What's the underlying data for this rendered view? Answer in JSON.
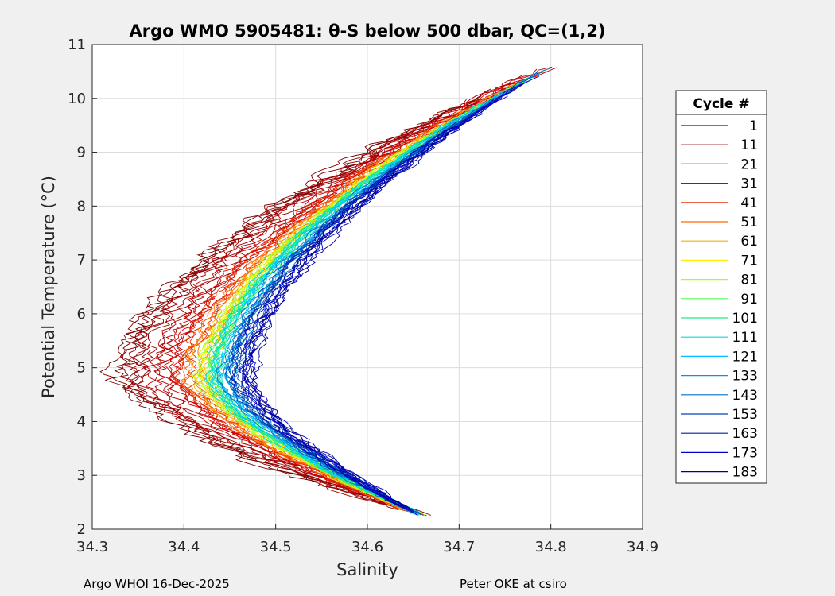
{
  "chart_data": {
    "type": "line",
    "title": "Argo WMO 5905481: θ-S below 500 dbar,  QC=(1,2)",
    "xlabel": "Salinity",
    "ylabel": "Potential Temperature (°C)",
    "xlim": [
      34.3,
      34.9
    ],
    "ylim": [
      2,
      11
    ],
    "xticks": [
      "34.3",
      "34.4",
      "34.5",
      "34.6",
      "34.7",
      "34.8",
      "34.9"
    ],
    "yticks": [
      "2",
      "3",
      "4",
      "5",
      "6",
      "7",
      "8",
      "9",
      "10",
      "11"
    ],
    "grid": true,
    "legend": {
      "title": "Cycle #",
      "position": "right",
      "entries": [
        {
          "label": "1",
          "color": "#7f0000"
        },
        {
          "label": "11",
          "color": "#990000"
        },
        {
          "label": "21",
          "color": "#b30000"
        },
        {
          "label": "31",
          "color": "#cc0000"
        },
        {
          "label": "41",
          "color": "#e62e00"
        },
        {
          "label": "51",
          "color": "#ff6600"
        },
        {
          "label": "61",
          "color": "#ffaa00"
        },
        {
          "label": "71",
          "color": "#ffee00"
        },
        {
          "label": "81",
          "color": "#aaff22"
        },
        {
          "label": "91",
          "color": "#55ff55"
        },
        {
          "label": "101",
          "color": "#22ee88"
        },
        {
          "label": "111",
          "color": "#00ddcc"
        },
        {
          "label": "121",
          "color": "#00c0ff"
        },
        {
          "label": "133",
          "color": "#0099dd"
        },
        {
          "label": "143",
          "color": "#0070cc"
        },
        {
          "label": "153",
          "color": "#0044bb"
        },
        {
          "label": "163",
          "color": "#0022aa"
        },
        {
          "label": "173",
          "color": "#0000cc"
        },
        {
          "label": "183",
          "color": "#000099"
        }
      ]
    },
    "series_shape": {
      "salinity_at_top": 34.8,
      "salinity_at_bottom": 34.66,
      "temp_top": 10.6,
      "temp_bottom": 2.25,
      "temp_of_minimum_salinity": 4.8
    },
    "series": [
      {
        "name": "1",
        "min_salinity": 34.33,
        "noise": 0.014
      },
      {
        "name": "11",
        "min_salinity": 34.35,
        "noise": 0.012
      },
      {
        "name": "21",
        "min_salinity": 34.37,
        "noise": 0.011
      },
      {
        "name": "31",
        "min_salinity": 34.39,
        "noise": 0.009
      },
      {
        "name": "41",
        "min_salinity": 34.4,
        "noise": 0.008
      },
      {
        "name": "51",
        "min_salinity": 34.41,
        "noise": 0.007
      },
      {
        "name": "61",
        "min_salinity": 34.415,
        "noise": 0.006
      },
      {
        "name": "71",
        "min_salinity": 34.42,
        "noise": 0.006
      },
      {
        "name": "81",
        "min_salinity": 34.425,
        "noise": 0.006
      },
      {
        "name": "91",
        "min_salinity": 34.428,
        "noise": 0.005
      },
      {
        "name": "101",
        "min_salinity": 34.432,
        "noise": 0.005
      },
      {
        "name": "111",
        "min_salinity": 34.436,
        "noise": 0.005
      },
      {
        "name": "121",
        "min_salinity": 34.44,
        "noise": 0.005
      },
      {
        "name": "133",
        "min_salinity": 34.445,
        "noise": 0.005
      },
      {
        "name": "143",
        "min_salinity": 34.45,
        "noise": 0.005
      },
      {
        "name": "153",
        "min_salinity": 34.455,
        "noise": 0.005
      },
      {
        "name": "163",
        "min_salinity": 34.46,
        "noise": 0.005
      },
      {
        "name": "173",
        "min_salinity": 34.465,
        "noise": 0.006
      },
      {
        "name": "183",
        "min_salinity": 34.47,
        "noise": 0.006
      }
    ]
  },
  "footer": {
    "left": "Argo WHOI 16-Dec-2025",
    "right": "Peter OKE at csiro"
  }
}
